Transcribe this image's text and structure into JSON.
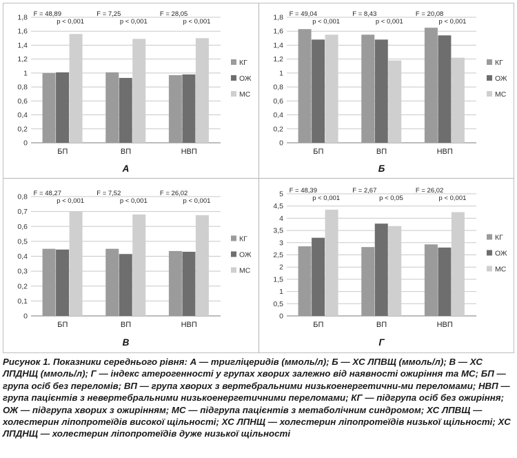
{
  "chart_data": [
    {
      "type": "bar",
      "panel_letter": "А",
      "categories": [
        "БП",
        "ВП",
        "НВП"
      ],
      "ylim": [
        0,
        1.8
      ],
      "yticks": [
        "0",
        "0,2",
        "0,4",
        "0,6",
        "0,8",
        "1",
        "1,2",
        "1,4",
        "1,6",
        "1,8"
      ],
      "series": [
        {
          "name": "КГ",
          "values": [
            1.0,
            1.01,
            0.97
          ]
        },
        {
          "name": "ОЖ",
          "values": [
            1.01,
            0.93,
            0.98
          ]
        },
        {
          "name": "МС",
          "values": [
            1.56,
            1.49,
            1.5
          ]
        }
      ],
      "annotations": [
        {
          "f": "F = 48,89",
          "p": "p < 0,001"
        },
        {
          "f": "F = 7,25",
          "p": "p < 0,001"
        },
        {
          "f": "F = 28,05",
          "p": "p < 0,001"
        }
      ],
      "grid": true,
      "legend": "right"
    },
    {
      "type": "bar",
      "panel_letter": "Б",
      "categories": [
        "БП",
        "ВП",
        "НВП"
      ],
      "ylim": [
        0,
        1.8
      ],
      "yticks": [
        "0",
        "0,2",
        "0,4",
        "0,6",
        "0,8",
        "1",
        "1,2",
        "1,4",
        "1,6",
        "1,8"
      ],
      "series": [
        {
          "name": "КГ",
          "values": [
            1.63,
            1.55,
            1.65
          ]
        },
        {
          "name": "ОЖ",
          "values": [
            1.48,
            1.48,
            1.54
          ]
        },
        {
          "name": "МС",
          "values": [
            1.55,
            1.18,
            1.22
          ]
        }
      ],
      "annotations": [
        {
          "f": "F = 49,04",
          "p": "p < 0,001"
        },
        {
          "f": "F = 8,43",
          "p": "p < 0,001"
        },
        {
          "f": "F = 20,08",
          "p": "p < 0,001"
        }
      ],
      "grid": true,
      "legend": "right"
    },
    {
      "type": "bar",
      "panel_letter": "В",
      "categories": [
        "БП",
        "ВП",
        "НВП"
      ],
      "ylim": [
        0,
        0.8
      ],
      "yticks": [
        "0",
        "0,1",
        "0,2",
        "0,3",
        "0,4",
        "0,5",
        "0,6",
        "0,7",
        "0,8"
      ],
      "series": [
        {
          "name": "КГ",
          "values": [
            0.45,
            0.45,
            0.435
          ]
        },
        {
          "name": "ОЖ",
          "values": [
            0.445,
            0.415,
            0.43
          ]
        },
        {
          "name": "МС",
          "values": [
            0.7,
            0.68,
            0.675
          ]
        }
      ],
      "annotations": [
        {
          "f": "F = 48,27",
          "p": "p < 0,001"
        },
        {
          "f": "F = 7,52",
          "p": "p < 0,001"
        },
        {
          "f": "F = 26,02",
          "p": "p < 0,001"
        }
      ],
      "grid": true,
      "legend": "right"
    },
    {
      "type": "bar",
      "panel_letter": "Г",
      "categories": [
        "БП",
        "ВП",
        "НВП"
      ],
      "ylim": [
        0,
        5
      ],
      "yticks": [
        "0",
        "0,5",
        "1",
        "1,5",
        "2",
        "2,5",
        "3",
        "3,5",
        "4",
        "4,5",
        "5"
      ],
      "series": [
        {
          "name": "КГ",
          "values": [
            2.85,
            2.82,
            2.93
          ]
        },
        {
          "name": "ОЖ",
          "values": [
            3.2,
            3.78,
            2.8
          ]
        },
        {
          "name": "МС",
          "values": [
            4.35,
            3.68,
            4.25
          ]
        }
      ],
      "annotations": [
        {
          "f": "F = 48,39",
          "p": "p < 0,001"
        },
        {
          "f": "F = 2,67",
          "p": "p < 0,05"
        },
        {
          "f": "F = 26,02",
          "p": "p < 0,001"
        }
      ],
      "grid": true,
      "legend": "right"
    }
  ],
  "colors": {
    "КГ": "#9b9b9b",
    "ОЖ": "#6e6e6e",
    "МС": "#cfcfcf",
    "grid": "#c8c8c8",
    "axis": "#7a7a7a",
    "divider": "#b5b5b5"
  },
  "caption": {
    "label": "Рисунок 1.",
    "text": " Показники середнього рівня: А — тригліцеридів (ммоль/л); Б — ХС ЛПВЩ (ммоль/л); В — ХС ЛПДНЩ (ммоль/л); Г — індекс атерогенності у групах хворих залежно від наявності ожиріння та МС; БП — група осіб без переломів; ВП — група хворих з вертебральними низькоенергетични-ми переломами; НВП — група пацієнтів з невертебральними низькоенергетичними переломами; КГ — підгрупа осіб без ожиріння; ОЖ — підгрупа хворих з ожирінням; МС — підгрупа пацієнтів з метаболічним синдромом; ХС ЛПВЩ — холестерин ліпопротеїдів високої щільності; ХС ЛПНЩ — холестерин ліпопротеїдів низької щільності; ХС ЛПДНЩ — холестерин ліпопротеїдів дуже низької щільності"
  }
}
